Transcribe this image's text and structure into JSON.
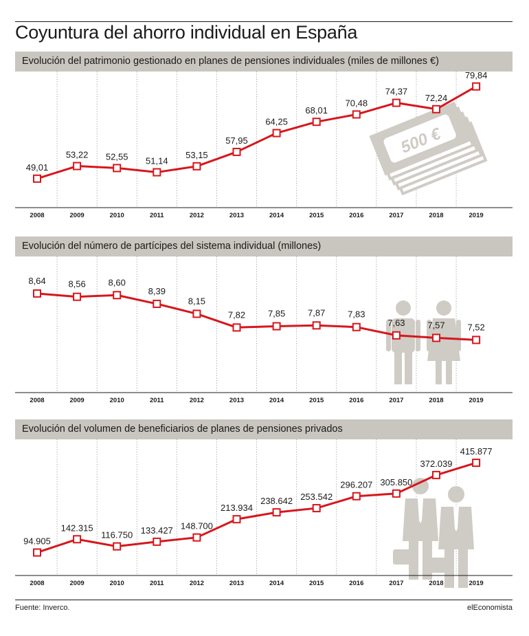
{
  "title": "Coyuntura del ahorro individual en España",
  "source": "Fuente: Inverco.",
  "brand": "elEconomista",
  "colors": {
    "line": "#d7161b",
    "header_bg": "#c9c5bf",
    "illustration": "#cfcbc5"
  },
  "chart_data": [
    {
      "type": "line",
      "title": "Evolución del patrimonio gestionado en planes de pensiones individuales (miles de millones €)",
      "categories": [
        "2008",
        "2009",
        "2010",
        "2011",
        "2012",
        "2013",
        "2014",
        "2015",
        "2016",
        "2017",
        "2018",
        "2019"
      ],
      "values": [
        49.01,
        53.22,
        52.55,
        51.14,
        53.15,
        57.95,
        64.25,
        68.01,
        70.48,
        74.37,
        72.24,
        79.84
      ],
      "labels": [
        "49,01",
        "53,22",
        "52,55",
        "51,14",
        "53,15",
        "57,95",
        "64,25",
        "68,01",
        "70,48",
        "74,37",
        "72,24",
        "79,84"
      ],
      "ylim": [
        40,
        83
      ],
      "grid": "vertical-dotted",
      "illustration": "banknotes-icon",
      "banknote_text": "500 €"
    },
    {
      "type": "line",
      "title": "Evolución del número de partícipes del sistema individual (millones)",
      "categories": [
        "2008",
        "2009",
        "2010",
        "2011",
        "2012",
        "2013",
        "2014",
        "2015",
        "2016",
        "2017",
        "2018",
        "2019"
      ],
      "values": [
        8.64,
        8.56,
        8.6,
        8.39,
        8.15,
        7.82,
        7.85,
        7.87,
        7.83,
        7.63,
        7.57,
        7.52
      ],
      "labels": [
        "8,64",
        "8,56",
        "8,60",
        "8,39",
        "8,15",
        "7,82",
        "7,85",
        "7,87",
        "7,83",
        "7,63",
        "7,57",
        "7,52"
      ],
      "ylim": [
        6.3,
        9.4
      ],
      "grid": "vertical-dotted",
      "illustration": "man-woman-icon"
    },
    {
      "type": "line",
      "title": "Evolución del volumen de beneficiarios de planes de pensiones privados",
      "categories": [
        "2008",
        "2009",
        "2010",
        "2011",
        "2012",
        "2013",
        "2014",
        "2015",
        "2016",
        "2017",
        "2018",
        "2019"
      ],
      "values": [
        94905,
        142315,
        116750,
        133427,
        148700,
        213934,
        238642,
        253542,
        296207,
        305850,
        372039,
        415877
      ],
      "labels": [
        "94.905",
        "142.315",
        "116.750",
        "133.427",
        "148.700",
        "213.934",
        "238.642",
        "253.542",
        "296.207",
        "305.850",
        "372.039",
        "415.877"
      ],
      "ylim": [
        20000,
        480000
      ],
      "grid": "vertical-dotted",
      "illustration": "businessmen-icon"
    }
  ]
}
